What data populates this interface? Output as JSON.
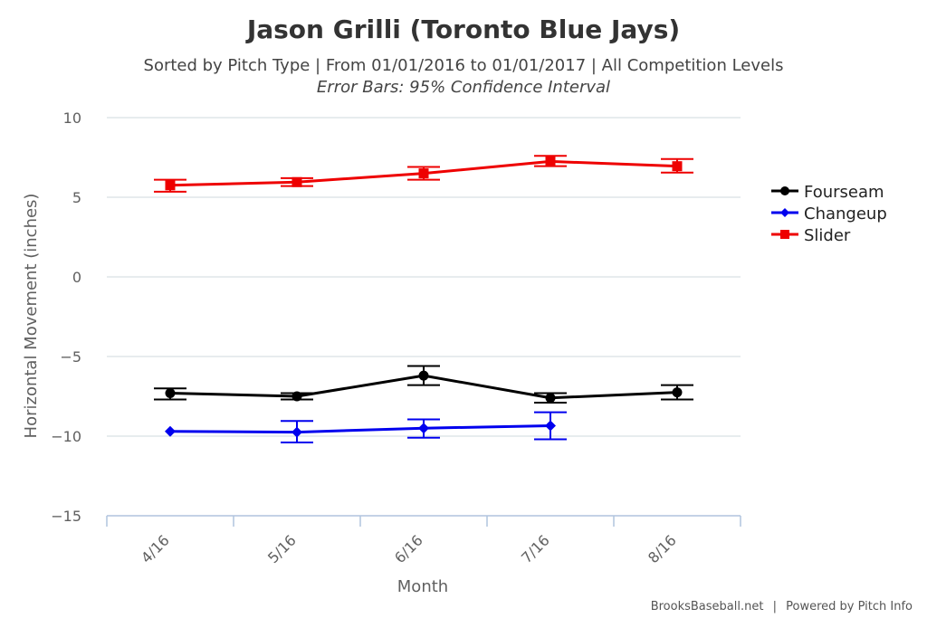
{
  "chart_data": {
    "type": "line",
    "title": "Jason Grilli (Toronto Blue Jays)",
    "subtitle": "Sorted by Pitch Type | From 01/01/2016 to 01/01/2017 | All Competition Levels",
    "subtitle2": "Error Bars: 95% Confidence Interval",
    "xlabel": "Month",
    "ylabel": "Horizontal Movement (inches)",
    "categories": [
      "4/16",
      "5/16",
      "6/16",
      "7/16",
      "8/16"
    ],
    "ylim": [
      -15,
      10
    ],
    "yticks": [
      10,
      5,
      0,
      -5,
      -10,
      -15
    ],
    "ytick_labels": [
      "10",
      "5",
      "0",
      "−5",
      "−10",
      "−15"
    ],
    "grid": true,
    "legend_position": "right",
    "series": [
      {
        "name": "Fourseam",
        "color": "#000000",
        "marker": "circle",
        "values": [
          -7.3,
          -7.5,
          -6.2,
          -7.6,
          -7.25
        ],
        "error_low": [
          -7.7,
          -7.7,
          -6.8,
          -7.9,
          -7.7
        ],
        "error_high": [
          -7.0,
          -7.3,
          -5.6,
          -7.3,
          -6.8
        ]
      },
      {
        "name": "Changeup",
        "color": "#0000ee",
        "marker": "diamond",
        "values": [
          -9.7,
          -9.75,
          -9.5,
          -9.35,
          null
        ],
        "error_low": [
          null,
          -10.4,
          -10.1,
          -10.2,
          null
        ],
        "error_high": [
          null,
          -9.05,
          -8.95,
          -8.5,
          null
        ]
      },
      {
        "name": "Slider",
        "color": "#ee0000",
        "marker": "square",
        "values": [
          5.75,
          5.95,
          6.5,
          7.25,
          6.95
        ],
        "error_low": [
          5.35,
          5.7,
          6.1,
          6.95,
          6.55
        ],
        "error_high": [
          6.1,
          6.2,
          6.9,
          7.6,
          7.4
        ]
      }
    ]
  },
  "credit": {
    "left": "BrooksBaseball.net",
    "separator": "|",
    "right": "Powered by Pitch Info"
  }
}
